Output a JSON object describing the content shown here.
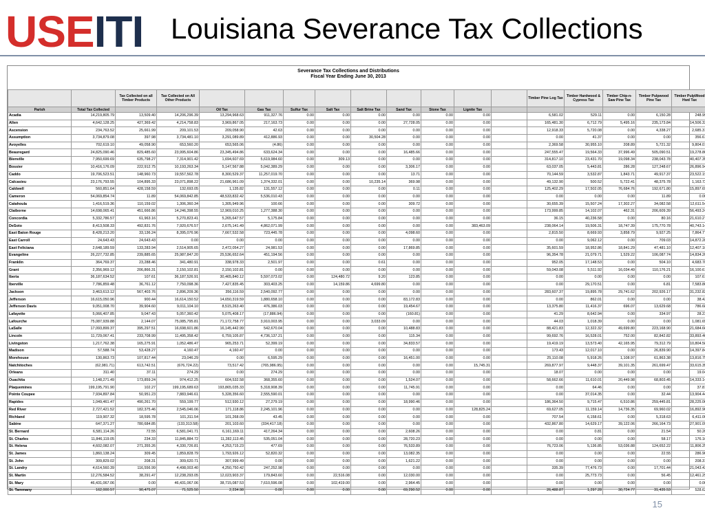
{
  "logo": {
    "part1": "USE",
    "part2": "ITI"
  },
  "slide_title": "Louisiana Severance Tax Collections",
  "sheet": {
    "title_line1": "Severance Tax Collections and Distributions",
    "title_line2": "Fiscal Year Ending June 30, 2013",
    "headers_top": [
      "",
      "",
      "Tax Collected on all Timber Products",
      "Tax Collected on All Other Products",
      "",
      "",
      "",
      "",
      "",
      "",
      "",
      "",
      "",
      "Timber Pine Log Tax",
      "Timber Hardwood & Cypress Tax",
      "Timber Chip-n-Saw Pine Tax",
      "Timber Pulpwood Pine Tax",
      "Timber PulpWood Hwd Tax"
    ],
    "headers_bottom": [
      "Parish",
      "Total Tax Collected",
      "",
      "",
      "Oil Tax",
      "Gas Tax",
      "Sulfur Tax",
      "Salt Tax",
      "Salt Brine Tax",
      "Sand Tax",
      "Stone Tax",
      "Lignite Tax",
      "",
      "",
      "",
      "",
      "",
      ""
    ],
    "rows": [
      [
        "Acadia",
        "14,219,805.79",
        "13,509.40",
        "14,206,296.39",
        "13,294,968.63",
        "911,327.76",
        "0.00",
        "0.00",
        "0.00",
        "0.00",
        "0.00",
        "0.00",
        "6,581.02",
        "529.11",
        "0.00",
        "6,150.28",
        "248.99"
      ],
      [
        "Allen",
        "4,642,128.25",
        "427,369.42",
        "4,214,758.83",
        "3,969,867.05",
        "217,163.73",
        "0.00",
        "0.00",
        "0.00",
        "27,728.05",
        "0.00",
        "0.00",
        "165,481.30",
        "6,712.79",
        "5,495.16",
        "235,173.84",
        "14,506.33"
      ],
      [
        "Ascension",
        "234,763.52",
        "25,661.99",
        "209,101.53",
        "209,058.90",
        "42.63",
        "0.00",
        "0.00",
        "0.00",
        "0.00",
        "0.00",
        "0.00",
        "12,918.33",
        "5,720.08",
        "0.00",
        "4,338.27",
        "2,685.31"
      ],
      [
        "Assumption",
        "3,734,879.08",
        "397.98",
        "3,734,481.10",
        "3,291,089.89",
        "412,886.93",
        "0.00",
        "0.00",
        "30,504.28",
        "0.00",
        "0.00",
        "0.00",
        "0.00",
        "41.37",
        "0.00",
        "0.00",
        "356.61"
      ],
      [
        "Avoyelles",
        "702,619.10",
        "49,058.90",
        "653,560.20",
        "653,565.06",
        "(4.86)",
        "0.00",
        "0.00",
        "0.00",
        "0.00",
        "0.00",
        "0.00",
        "2,369.58",
        "30,955.10",
        "208.89",
        "5,721.32",
        "9,804.01"
      ],
      [
        "Beauregard",
        "24,825,090.46",
        "829,485.60",
        "23,995,604.86",
        "23,345,494.86",
        "633,624.34",
        "0.00",
        "0.00",
        "0.00",
        "16,485.66",
        "0.00",
        "0.00",
        "247,555.47",
        "19,564.33",
        "37,996.49",
        "505,090.51",
        "19,278.80"
      ],
      [
        "Bienville",
        "7,950,699.69",
        "635,798.27",
        "7,314,901.42",
        "1,694,607.69",
        "5,619,984.60",
        "0.00",
        "309.13",
        "0.00",
        "0.00",
        "0.00",
        "0.00",
        "314,817.10",
        "23,431.70",
        "19,098.34",
        "238,043.78",
        "40,407.35"
      ],
      [
        "Bossier",
        "10,416,176.09",
        "222,912.75",
        "10,193,263.34",
        "5,147,567.88",
        "5,042,389.29",
        "0.00",
        "0.00",
        "0.00",
        "3,306.17",
        "0.00",
        "0.00",
        "63,037.05",
        "5,443.81",
        "286.28",
        "127,248.67",
        "26,896.94"
      ],
      [
        "Caddo",
        "19,706,523.51",
        "148,960.73",
        "19,557,562.78",
        "8,300,529.37",
        "11,257,019.70",
        "0.00",
        "0.00",
        "0.00",
        "13.71",
        "0.00",
        "0.00",
        "70,144.59",
        "3,532.87",
        "1,843.71",
        "49,917.37",
        "23,522.19"
      ],
      [
        "Calcasieu",
        "23,176,793.55",
        "104,895.33",
        "23,071,898.22",
        "21,686,961.09",
        "1,374,332.01",
        "0.00",
        "0.00",
        "10,235.14",
        "369.98",
        "0.00",
        "0.00",
        "49,132.90",
        "500.52",
        "5,722.41",
        "48,375.78",
        "1,163.72"
      ],
      [
        "Caldwell",
        "560,851.64",
        "428,158.59",
        "132,693.05",
        "1,135.82",
        "131,557.12",
        "0.00",
        "0.00",
        "0.00",
        "0.11",
        "0.00",
        "0.00",
        "125,402.29",
        "17,502.05",
        "76,684.76",
        "192,671.80",
        "15,897.69"
      ],
      [
        "Cameron",
        "54,069,854.74",
        "11.89",
        "54,069,842.85",
        "48,533,832.42",
        "5,536,010.43",
        "0.00",
        "0.00",
        "0.00",
        "0.00",
        "0.00",
        "0.00",
        "0.00",
        "0.00",
        "0.00",
        "11.89",
        "0.00"
      ],
      [
        "Catahoula",
        "1,416,519.36",
        "110,159.02",
        "1,306,360.34",
        "1,305,949.96",
        "100.66",
        "0.00",
        "0.00",
        "0.00",
        "309.72",
        "0.00",
        "0.00",
        "30,655.39",
        "15,507.24",
        "17,302.27",
        "34,082.58",
        "12,611.54"
      ],
      [
        "Claiborne",
        "14,698,065.41",
        "451,666.86",
        "14,246,398.55",
        "12,969,010.25",
        "1,277,388.30",
        "0.00",
        "0.00",
        "0.00",
        "0.00",
        "0.00",
        "0.00",
        "173,999.85",
        "14,102.07",
        "462.31",
        "206,609.39",
        "56,493.24"
      ],
      [
        "Concordia",
        "5,332,786.57",
        "61,963.16",
        "5,270,823.41",
        "5,265,647.57",
        "5,175.84",
        "0.00",
        "0.00",
        "0.00",
        "0.00",
        "0.00",
        "0.00",
        "36.15",
        "40,236.58",
        "0.00",
        "80.16",
        "21,610.27"
      ],
      [
        "DeSoto",
        "8,413,508.33",
        "492,831.76",
        "7,920,676.57",
        "2,675,141.49",
        "4,862,071.99",
        "0.00",
        "0.00",
        "0.00",
        "0.00",
        "0.00",
        "383,463.09",
        "238,064.14",
        "19,506.31",
        "18,747.39",
        "175,770.78",
        "40,743.14"
      ],
      [
        "East Baton Rouge",
        "8,428,213.20",
        "33,136.24",
        "8,395,076.96",
        "7,667,532.58",
        "723,445.78",
        "0.00",
        "0.00",
        "0.00",
        "4,098.60",
        "0.00",
        "0.00",
        "2,815.50",
        "8,669.93",
        "3,858.79",
        "9,927.25",
        "7,864.77"
      ],
      [
        "East Carroll",
        "24,643.43",
        "24,643.43",
        "0.00",
        "0.00",
        "0.00",
        "0.00",
        "0.00",
        "0.00",
        "0.00",
        "0.00",
        "0.00",
        "0.00",
        "9,062.12",
        "0.00",
        "709.03",
        "14,872.28"
      ],
      [
        "East Feliciana",
        "2,648,189.59",
        "133,283.94",
        "2,514,905.65",
        "2,472,054.27",
        "24,981.53",
        "0.00",
        "0.00",
        "0.00",
        "17,869.85",
        "0.00",
        "0.00",
        "35,601.59",
        "18,952.86",
        "18,841.29",
        "47,481.10",
        "12,407.10"
      ],
      [
        "Evangeline",
        "26,227,732.85",
        "239,885.65",
        "25,987,847.20",
        "25,536,652.64",
        "451,194.56",
        "0.00",
        "0.00",
        "0.00",
        "0.00",
        "0.00",
        "0.00",
        "96,354.78",
        "21,079.71",
        "1,529.22",
        "106,087.74",
        "14,834.20"
      ],
      [
        "Franklin",
        "364,769.37",
        "23,288.46",
        "341,480.91",
        "338,978.33",
        "2,501.97",
        "0.00",
        "0.00",
        "0.61",
        "0.00",
        "0.00",
        "0.00",
        "952.05",
        "17,148.53",
        "0.00",
        "504.10",
        "4,683.78"
      ],
      [
        "Grant",
        "2,356,969.12",
        "206,866.31",
        "2,150,102.81",
        "2,150,102.81",
        "0.00",
        "0.00",
        "0.00",
        "0.00",
        "0.00",
        "0.00",
        "0.00",
        "59,043.08",
        "5,511.92",
        "16,034.49",
        "110,176.21",
        "16,100.61"
      ],
      [
        "Iberia",
        "36,187,634.52",
        "107.61",
        "36,187,526.91",
        "30,465,840.12",
        "5,597,073.02",
        "0.00",
        "124,480.72",
        "9.20",
        "123.85",
        "0.00",
        "0.00",
        "0.00",
        "0.00",
        "0.00",
        "0.00",
        "107.61"
      ],
      [
        "Iberville",
        "7,786,859.48",
        "36,761.12",
        "7,750,098.36",
        "7,427,835.45",
        "303,403.25",
        "0.00",
        "14,159.86",
        "4,699.80",
        "0.00",
        "0.00",
        "0.00",
        "0.00",
        "29,170.51",
        "0.00",
        "6.81",
        "7,583.80"
      ],
      [
        "Jackson",
        "3,463,613.12",
        "567,403.76",
        "2,896,209.36",
        "356,116.59",
        "2,540,092.77",
        "0.00",
        "0.00",
        "0.00",
        "0.00",
        "0.00",
        "0.00",
        "283,607.37",
        "19,895.78",
        "29,741.62",
        "202,926.17",
        "31,232.82"
      ],
      [
        "Jefferson",
        "16,615,050.96",
        "900.44",
        "16,614,150.52",
        "14,650,319.59",
        "1,880,658.10",
        "0.00",
        "0.00",
        "0.00",
        "83,172.83",
        "0.00",
        "0.00",
        "0.00",
        "862.01",
        "0.00",
        "0.00",
        "38.43"
      ],
      [
        "Jefferson Davis",
        "9,051,008.70",
        "39,904.60",
        "9,011,104.10",
        "8,515,263.40",
        "476,386.03",
        "0.00",
        "0.00",
        "0.00",
        "19,454.67",
        "0.00",
        "0.00",
        "13,375.80",
        "11,416.37",
        "696.07",
        "13,629.68",
        "786.68"
      ],
      [
        "Lafayette",
        "5,066,407.85",
        "9,047.43",
        "5,057,360.42",
        "5,075,408.17",
        "(17,886.94)",
        "0.00",
        "0.00",
        "0.00",
        "(160.81)",
        "0.00",
        "0.00",
        "41.29",
        "8,642.94",
        "0.00",
        "334.97",
        "28.23"
      ],
      [
        "Lafourche",
        "75,087,939.88",
        "2,144.07",
        "75,085,795.81",
        "71,172,758.77",
        "3,910,003.95",
        "0.00",
        "0.00",
        "3,033.09",
        "0.00",
        "0.00",
        "0.00",
        "44.03",
        "1,018.39",
        "0.00",
        "0.00",
        "1,081.65"
      ],
      [
        "LaSalle",
        "17,093,899.37",
        "395,297.51",
        "16,698,601.86",
        "16,145,442.99",
        "542,670.04",
        "0.00",
        "0.00",
        "0.00",
        "10,488.83",
        "0.00",
        "0.00",
        "88,421.83",
        "12,322.32",
        "49,699.80",
        "223,168.90",
        "21,684.66"
      ],
      [
        "Lincoln",
        "11,729,067.41",
        "233,708.99",
        "11,495,358.42",
        "6,759,105.87",
        "4,736,137.21",
        "0.00",
        "0.00",
        "0.00",
        "115.34",
        "0.00",
        "0.00",
        "99,692.76",
        "16,528.01",
        "752.00",
        "82,842.82",
        "33,893.40"
      ],
      [
        "Livingston",
        "1,217,762.38",
        "165,275.91",
        "1,052,486.47",
        "965,253.71",
        "52,399.19",
        "0.00",
        "0.00",
        "0.00",
        "34,833.57",
        "0.00",
        "0.00",
        "19,419.19",
        "13,573.40",
        "42,165.95",
        "79,312.79",
        "10,804.58"
      ],
      [
        "Madison",
        "57,588.74",
        "53,428.27",
        "4,160.47",
        "4,160.47",
        "0.00",
        "0.00",
        "0.00",
        "0.00",
        "0.00",
        "0.00",
        "0.00",
        "173.43",
        "12,017.10",
        "0.00",
        "26,839.90",
        "14,397.84"
      ],
      [
        "Morehouse",
        "130,863.73",
        "107,817.44",
        "23,046.29",
        "0.00",
        "6,595.29",
        "0.00",
        "0.00",
        "0.00",
        "16,451.00",
        "0.00",
        "0.00",
        "25,110.08",
        "5,918.26",
        "1,108.97",
        "61,863.38",
        "13,816.75"
      ],
      [
        "Natchitoches",
        "(62,981.71)",
        "613,742.51",
        "(676,724.22)",
        "73,517.42",
        "(765,986.95)",
        "0.00",
        "0.00",
        "0.00",
        "0.00",
        "0.00",
        "15,745.31",
        "269,877.97",
        "9,448.37",
        "39,101.35",
        "261,699.47",
        "33,615.35"
      ],
      [
        "Orleans",
        "311.40",
        "37.11",
        "274.29",
        "0.00",
        "274.29",
        "0.00",
        "0.00",
        "0.00",
        "0.00",
        "0.00",
        "0.00",
        "18.07",
        "0.00",
        "0.00",
        "0.00",
        "19.04"
      ],
      [
        "Ouachita",
        "1,148,271.49",
        "173,859.24",
        "974,412.25",
        "604,532.58",
        "368,355.60",
        "0.00",
        "0.00",
        "0.00",
        "1,524.07",
        "0.00",
        "0.00",
        "58,662.66",
        "11,610.01",
        "20,449.98",
        "68,803.45",
        "14,333.14"
      ],
      [
        "Plaquemines",
        "199,195,791.90",
        "102.27",
        "199,195,689.63",
        "193,865,035.33",
        "5,318,908.39",
        "0.00",
        "0.00",
        "0.00",
        "11,745.91",
        "0.00",
        "0.00",
        "0.00",
        "64.46",
        "0.00",
        "0.00",
        "37.81"
      ],
      [
        "Pointe Coupee",
        "7,934,897.84",
        "50,951.23",
        "7,883,946.61",
        "5,328,356.60",
        "2,555,590.01",
        "0.00",
        "0.00",
        "0.00",
        "0.00",
        "0.00",
        "0.00",
        "0.00",
        "37,014.35",
        "0.00",
        "32.44",
        "13,904.44"
      ],
      [
        "Rapides",
        "1,049,461.47",
        "490,261.70",
        "559,199.77",
        "512,930.12",
        "27,279.19",
        "0.00",
        "0.00",
        "0.00",
        "18,990.46",
        "0.00",
        "0.00",
        "186,364.50",
        "9,715.47",
        "6,510.86",
        "259,445.81",
        "28,225.06"
      ],
      [
        "Red River",
        "2,727,421.52",
        "182,375.46",
        "2,545,046.06",
        "171,118.86",
        "2,245,101.96",
        "0.00",
        "0.00",
        "0.00",
        "0.00",
        "0.00",
        "128,825.24",
        "69,627.05",
        "11,159.14",
        "14,736.35",
        "69,960.02",
        "16,892.90"
      ],
      [
        "Richland",
        "119,907.32",
        "18,595.78",
        "101,311.54",
        "101,268.09",
        "43.45",
        "0.00",
        "0.00",
        "0.00",
        "0.00",
        "0.00",
        "0.00",
        "707.54",
        "6,158.61",
        "0.00",
        "5,318.63",
        "6,411.00"
      ],
      [
        "Sabine",
        "647,371.27",
        "780,684.85",
        "(133,313.58)",
        "201,103.60",
        "(334,417.18)",
        "0.00",
        "0.00",
        "0.00",
        "0.00",
        "0.00",
        "0.00",
        "432,867.80",
        "14,629.17",
        "39,122.06",
        "266,164.73",
        "27,901.09"
      ],
      [
        "St. Bernard",
        "6,581,114.26",
        "72.55",
        "6,581,041.71",
        "6,161,169.11",
        "417,264.34",
        "0.00",
        "0.00",
        "0.00",
        "2,608.26",
        "0.00",
        "0.00",
        "0.00",
        "0.81",
        "0.00",
        "21.54",
        "50.20"
      ],
      [
        "St. Charles",
        "11,846,119.05",
        "234.33",
        "11,845,884.72",
        "11,282,113.45",
        "535,051.04",
        "0.00",
        "0.00",
        "0.00",
        "28,720.23",
        "0.00",
        "0.00",
        "0.00",
        "0.00",
        "0.00",
        "58.17",
        "176.16"
      ],
      [
        "St. Helena",
        "4,602,082.07",
        "271,355.26",
        "4,330,726.81",
        "4,253,715.23",
        "477.69",
        "0.00",
        "0.00",
        "0.00",
        "76,533.89",
        "0.00",
        "0.00",
        "76,723.06",
        "5,136.85",
        "53,036.88",
        "124,652.22",
        "11,806.25"
      ],
      [
        "St. James",
        "1,860,138.24",
        "309.45",
        "1,859,828.79",
        "1,793,926.12",
        "52,820.32",
        "0.00",
        "0.00",
        "0.00",
        "13,082.35",
        "0.00",
        "0.00",
        "0.00",
        "0.00",
        "0.00",
        "22.55",
        "286.90"
      ],
      [
        "St. John",
        "309,829.02",
        "208.31",
        "309,620.71",
        "307,999.49",
        "0.00",
        "0.00",
        "0.00",
        "0.00",
        "1,621.22",
        "0.00",
        "0.00",
        "0.00",
        "0.00",
        "0.00",
        "0.00",
        "208.31"
      ],
      [
        "St. Landry",
        "4,614,560.39",
        "116,556.99",
        "4,498,003.40",
        "4,250,750.42",
        "247,252.98",
        "0.00",
        "0.00",
        "0.00",
        "0.00",
        "0.00",
        "0.00",
        "335.39",
        "77,476.73",
        "0.00",
        "17,701.44",
        "21,043.43"
      ],
      [
        "St. Martin",
        "12,276,584.52",
        "38,291.47",
        "12,238,293.05",
        "12,023,903.37",
        "179,843.60",
        "0.00",
        "22,516.08",
        "0.00",
        "12,030.00",
        "0.00",
        "0.00",
        "0.00",
        "25,773.73",
        "0.00",
        "56.45",
        "12,461.29"
      ],
      [
        "St. Mary",
        "46,431,067.06",
        "0.00",
        "46,431,067.06",
        "38,715,087.53",
        "7,610,596.08",
        "0.00",
        "102,419.00",
        "0.00",
        "2,964.45",
        "0.00",
        "0.00",
        "0.00",
        "0.00",
        "0.00",
        "0.00",
        "0.00"
      ],
      [
        "St. Tammany",
        "162,000.57",
        "90,475.07",
        "71,525.50",
        "2,234.98",
        "0.00",
        "0.00",
        "0.00",
        "0.00",
        "69,290.52",
        "0.00",
        "0.00",
        "26,488.87",
        "1,297.28",
        "30,724.77",
        "31,435.53",
        "528.62"
      ]
    ]
  },
  "page_number": "15"
}
